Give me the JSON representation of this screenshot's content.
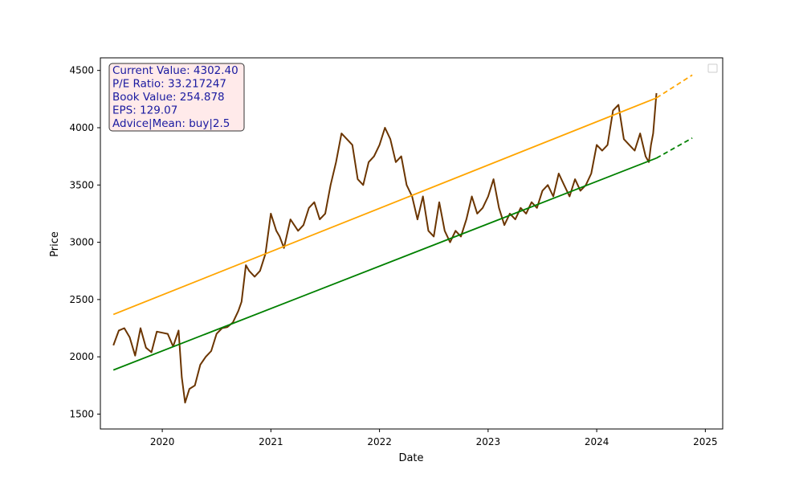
{
  "chart_data": {
    "type": "line",
    "title": "",
    "xlabel": "Date",
    "ylabel": "Price",
    "xlim": [
      2019.43,
      2025.16
    ],
    "ylim": [
      1370,
      4610
    ],
    "x_ticks": [
      2020,
      2021,
      2022,
      2023,
      2024,
      2025
    ],
    "x_tick_labels": [
      "2020",
      "2021",
      "2022",
      "2023",
      "2024",
      "2025"
    ],
    "y_ticks": [
      1500,
      2000,
      2500,
      3000,
      3500,
      4000,
      4500
    ],
    "y_tick_labels": [
      "1500",
      "2000",
      "2500",
      "3000",
      "3500",
      "4000",
      "4500"
    ],
    "info_box": [
      "Current Value: 4302.40",
      "P/E Ratio: 33.217247",
      "Book Value: 254.878",
      "EPS: 129.07",
      "Advice|Mean: buy|2.5"
    ],
    "legend": {
      "entries": [],
      "position": "top-right"
    },
    "series": [
      {
        "name": "price",
        "color": "#6b3500",
        "style": "solid",
        "x": [
          2019.55,
          2019.6,
          2019.65,
          2019.7,
          2019.75,
          2019.8,
          2019.85,
          2019.9,
          2019.95,
          2020.0,
          2020.05,
          2020.1,
          2020.15,
          2020.18,
          2020.21,
          2020.25,
          2020.3,
          2020.35,
          2020.4,
          2020.45,
          2020.5,
          2020.55,
          2020.6,
          2020.65,
          2020.7,
          2020.73,
          2020.77,
          2020.8,
          2020.85,
          2020.9,
          2020.95,
          2021.0,
          2021.05,
          2021.08,
          2021.12,
          2021.18,
          2021.25,
          2021.3,
          2021.35,
          2021.4,
          2021.45,
          2021.5,
          2021.55,
          2021.6,
          2021.65,
          2021.7,
          2021.75,
          2021.8,
          2021.85,
          2021.9,
          2021.95,
          2022.0,
          2022.05,
          2022.1,
          2022.15,
          2022.2,
          2022.25,
          2022.3,
          2022.35,
          2022.4,
          2022.45,
          2022.5,
          2022.55,
          2022.6,
          2022.65,
          2022.7,
          2022.75,
          2022.8,
          2022.85,
          2022.9,
          2022.95,
          2023.0,
          2023.05,
          2023.1,
          2023.15,
          2023.2,
          2023.25,
          2023.3,
          2023.35,
          2023.4,
          2023.45,
          2023.5,
          2023.55,
          2023.6,
          2023.65,
          2023.7,
          2023.75,
          2023.8,
          2023.85,
          2023.9,
          2023.95,
          2024.0,
          2024.05,
          2024.1,
          2024.15,
          2024.2,
          2024.25,
          2024.3,
          2024.35,
          2024.4,
          2024.45,
          2024.48,
          2024.5,
          2024.52,
          2024.55
        ],
        "y": [
          2100,
          2230,
          2250,
          2170,
          2010,
          2250,
          2080,
          2040,
          2220,
          2210,
          2200,
          2090,
          2230,
          1820,
          1600,
          1720,
          1750,
          1930,
          2000,
          2050,
          2200,
          2250,
          2260,
          2300,
          2400,
          2480,
          2800,
          2750,
          2700,
          2750,
          2900,
          3250,
          3100,
          3050,
          2950,
          3200,
          3100,
          3150,
          3300,
          3350,
          3200,
          3250,
          3500,
          3700,
          3950,
          3900,
          3850,
          3550,
          3500,
          3700,
          3750,
          3850,
          4000,
          3900,
          3700,
          3750,
          3500,
          3400,
          3200,
          3400,
          3100,
          3050,
          3350,
          3100,
          3000,
          3100,
          3050,
          3200,
          3400,
          3250,
          3300,
          3400,
          3550,
          3300,
          3150,
          3250,
          3200,
          3300,
          3250,
          3350,
          3300,
          3450,
          3500,
          3400,
          3600,
          3500,
          3400,
          3550,
          3450,
          3500,
          3600,
          3850,
          3800,
          3850,
          4150,
          4200,
          3900,
          3850,
          3800,
          3950,
          3750,
          3700,
          3850,
          3950,
          4302.4
        ]
      },
      {
        "name": "upper-trend",
        "color": "#ffa500",
        "style": "solid",
        "x": [
          2019.55,
          2024.55
        ],
        "y": [
          2370,
          4260
        ]
      },
      {
        "name": "upper-trend-forecast",
        "color": "#ffa500",
        "style": "dashed",
        "x": [
          2024.55,
          2024.88
        ],
        "y": [
          4260,
          4460
        ]
      },
      {
        "name": "lower-trend",
        "color": "#008000",
        "style": "solid",
        "x": [
          2019.55,
          2024.55
        ],
        "y": [
          1885,
          3735
        ]
      },
      {
        "name": "lower-trend-forecast",
        "color": "#008000",
        "style": "dashed",
        "x": [
          2024.55,
          2024.88
        ],
        "y": [
          3735,
          3910
        ]
      }
    ]
  },
  "colors": {
    "info_box_bg": "#ffeaea",
    "info_text": "#1a1aa0"
  }
}
